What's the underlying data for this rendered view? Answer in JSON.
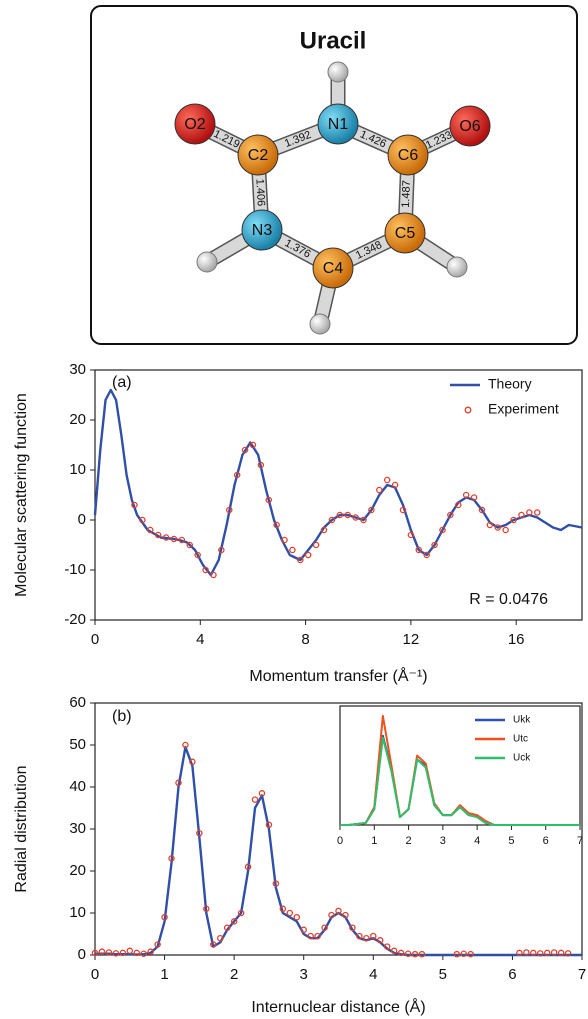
{
  "molecule": {
    "title": "Uracil",
    "atoms": [
      "O2",
      "C2",
      "N1",
      "C6",
      "O6",
      "N3",
      "C5",
      "C4"
    ],
    "bonds": [
      1.219,
      1.392,
      1.426,
      1.233,
      1.406,
      1.487,
      1.376,
      1.348
    ]
  },
  "chart_data": [
    {
      "type": "line",
      "xlabel": "Momentum transfer (Å⁻¹)",
      "ylabel": "Molecular scattering function",
      "xlim": [
        0,
        18.5
      ],
      "ylim": [
        -20,
        30
      ],
      "xticks": [
        0,
        4,
        8,
        12,
        16
      ],
      "yticks": [
        -20,
        -10,
        0,
        10,
        20,
        30
      ],
      "grid": false,
      "legend": "upper right",
      "annotations": [
        "(a)",
        "R = 0.0476"
      ],
      "series": [
        {
          "name": "Theory",
          "type": "line",
          "color": "#2f4fa8",
          "x": [
            0,
            0.2,
            0.4,
            0.6,
            0.8,
            1.0,
            1.2,
            1.4,
            1.6,
            2.0,
            2.5,
            3.0,
            3.2,
            3.5,
            3.8,
            4.1,
            4.4,
            4.7,
            5.0,
            5.3,
            5.6,
            5.9,
            6.2,
            6.5,
            6.8,
            7.1,
            7.4,
            7.8,
            8.1,
            8.4,
            8.7,
            9.0,
            9.3,
            9.6,
            9.9,
            10.2,
            10.5,
            10.8,
            11.1,
            11.4,
            11.7,
            12.0,
            12.3,
            12.6,
            12.9,
            13.2,
            13.5,
            13.8,
            14.1,
            14.4,
            14.7,
            15.0,
            15.3,
            15.6,
            15.9,
            16.2,
            16.5,
            16.8,
            17.1,
            17.4,
            17.7,
            18.0,
            18.5
          ],
          "values": [
            1,
            14,
            24,
            26,
            24,
            17,
            9,
            4,
            1,
            -2,
            -3.5,
            -3.8,
            -4,
            -4.5,
            -6,
            -9,
            -11,
            -8,
            -1,
            7,
            13,
            15.5,
            13,
            6,
            0,
            -4,
            -7,
            -8,
            -6,
            -4,
            -1.5,
            0,
            1,
            1,
            0.5,
            0,
            2,
            5,
            7,
            6.5,
            3,
            -2,
            -6,
            -7,
            -5,
            -2,
            1,
            3.5,
            4.5,
            4,
            2,
            -0.5,
            -1.5,
            -1,
            0,
            0.5,
            1,
            0.5,
            -0.5,
            -1.5,
            -2,
            -1,
            -1.5
          ]
        },
        {
          "name": "Experiment",
          "type": "scatter",
          "color": "#e0402a",
          "x": [
            1.5,
            1.8,
            2.1,
            2.4,
            2.7,
            3.0,
            3.3,
            3.6,
            3.9,
            4.2,
            4.5,
            4.8,
            5.1,
            5.4,
            5.7,
            6.0,
            6.3,
            6.6,
            6.9,
            7.2,
            7.5,
            7.8,
            8.1,
            8.4,
            8.7,
            9.0,
            9.3,
            9.6,
            9.9,
            10.2,
            10.5,
            10.8,
            11.1,
            11.4,
            11.7,
            12.0,
            12.3,
            12.6,
            12.9,
            13.2,
            13.5,
            13.8,
            14.1,
            14.4,
            14.7,
            15.0,
            15.3,
            15.6,
            15.9,
            16.2,
            16.5,
            16.8
          ],
          "values": [
            3,
            0,
            -2,
            -3,
            -3.5,
            -3.8,
            -4,
            -5,
            -7,
            -10,
            -11,
            -6,
            2,
            9,
            14,
            15,
            11,
            4,
            -1,
            -4,
            -6,
            -8,
            -7,
            -5,
            -2,
            0,
            1,
            1,
            0.5,
            0,
            2,
            6,
            8,
            7,
            2,
            -3,
            -6,
            -7,
            -5,
            -2,
            1,
            3,
            5,
            4.5,
            2,
            -1,
            -1.5,
            -2,
            0,
            1,
            1.5,
            1.5
          ]
        }
      ]
    },
    {
      "type": "line",
      "xlabel": "Internuclear distance (Å)",
      "ylabel": "Radial distribution",
      "xlim": [
        0,
        7
      ],
      "ylim": [
        0,
        60
      ],
      "xticks": [
        0,
        1,
        2,
        3,
        4,
        5,
        6,
        7
      ],
      "yticks": [
        0,
        10,
        20,
        30,
        40,
        50,
        60
      ],
      "grid": false,
      "annotations": [
        "(b)"
      ],
      "series": [
        {
          "type": "line",
          "color": "#2f4fa8",
          "x": [
            0,
            0.1,
            0.2,
            0.3,
            0.4,
            0.5,
            0.6,
            0.7,
            0.8,
            0.9,
            1.0,
            1.1,
            1.2,
            1.3,
            1.4,
            1.5,
            1.6,
            1.7,
            1.8,
            1.9,
            2.0,
            2.1,
            2.2,
            2.3,
            2.4,
            2.5,
            2.6,
            2.7,
            2.8,
            2.9,
            3.0,
            3.1,
            3.2,
            3.3,
            3.4,
            3.5,
            3.6,
            3.7,
            3.8,
            3.9,
            4.0,
            4.1,
            4.2,
            4.3,
            4.4,
            4.5,
            4.6,
            4.7,
            4.8,
            4.9,
            5.0,
            5.1,
            5.2,
            5.3,
            5.4,
            5.5,
            5.6,
            5.7,
            5.8,
            5.9,
            6.0,
            6.1,
            6.2,
            6.3,
            6.4,
            6.5,
            6.6,
            6.7,
            6.8,
            6.9,
            7.0
          ],
          "values": [
            0.3,
            0.3,
            0.3,
            0.2,
            0.2,
            0.2,
            0.1,
            0.2,
            0.5,
            2,
            8,
            22,
            40,
            49.5,
            45,
            28,
            10,
            2,
            3,
            6,
            8,
            10,
            20,
            35,
            38,
            30,
            16,
            10,
            9,
            8,
            5,
            4,
            4,
            6,
            9,
            10,
            9,
            6,
            4,
            3.5,
            4,
            3,
            1.5,
            0.5,
            0.2,
            0,
            0,
            0,
            0,
            0,
            0,
            0,
            0,
            0,
            0,
            0,
            0,
            0,
            0,
            0,
            0,
            0,
            0,
            0,
            0,
            0,
            0,
            0,
            0,
            0,
            0
          ]
        },
        {
          "type": "scatter",
          "color": "#e0402a",
          "x": [
            0,
            0.1,
            0.2,
            0.3,
            0.4,
            0.5,
            0.6,
            0.7,
            0.8,
            0.9,
            1.0,
            1.1,
            1.2,
            1.3,
            1.4,
            1.5,
            1.6,
            1.7,
            1.8,
            1.9,
            2.0,
            2.1,
            2.2,
            2.3,
            2.4,
            2.5,
            2.6,
            2.7,
            2.8,
            2.9,
            3.0,
            3.1,
            3.2,
            3.3,
            3.4,
            3.5,
            3.6,
            3.7,
            3.8,
            3.9,
            4.0,
            4.1,
            4.2,
            4.3,
            4.4,
            4.5,
            4.6,
            4.7,
            5.2,
            5.3,
            5.4,
            6.1,
            6.2,
            6.3,
            6.4,
            6.5,
            6.6,
            6.7,
            6.8
          ],
          "values": [
            0.5,
            0.8,
            0.6,
            0.4,
            0.5,
            1,
            0.5,
            0.3,
            0.8,
            2.5,
            9,
            23,
            41,
            50,
            46,
            29,
            11,
            2.5,
            4,
            6.5,
            8,
            10,
            21,
            37,
            38.5,
            31,
            17,
            11,
            10,
            9,
            6,
            4.5,
            4.5,
            6.5,
            9.5,
            10.5,
            9.5,
            6.5,
            4.5,
            4,
            4.5,
            3.5,
            2,
            1,
            0.5,
            0.3,
            0.2,
            0.2,
            0.2,
            0.3,
            0.2,
            0.5,
            0.6,
            0.5,
            0.4,
            0.5,
            0.6,
            0.5,
            0.4
          ]
        }
      ]
    },
    {
      "type": "line",
      "xlim": [
        0,
        7
      ],
      "ylim": [
        0,
        60
      ],
      "xticks": [
        0,
        1,
        2,
        3,
        4,
        5,
        6,
        7
      ],
      "grid": false,
      "legend": "upper right",
      "x": [
        0,
        0.25,
        0.5,
        0.75,
        1.0,
        1.25,
        1.5,
        1.75,
        2.0,
        2.25,
        2.5,
        2.75,
        3.0,
        3.25,
        3.5,
        3.75,
        4.0,
        4.25,
        4.5,
        4.75,
        5.0,
        5.25,
        5.5,
        5.75,
        6.0,
        6.25,
        6.5,
        6.75,
        7.0
      ],
      "series": [
        {
          "name": "Ukk",
          "type": "line",
          "color": "#2f4fa8",
          "values": [
            0,
            0,
            0.5,
            1,
            8,
            45,
            28,
            4,
            8,
            33,
            30,
            10,
            5,
            5,
            9,
            5,
            4,
            1,
            0,
            0,
            0,
            0,
            0,
            0,
            0,
            0,
            0,
            0,
            0
          ]
        },
        {
          "name": "Utc",
          "type": "line",
          "color": "#f0501e",
          "values": [
            0,
            0,
            0.5,
            1,
            9,
            55,
            30,
            4,
            8,
            35,
            31,
            11,
            5,
            5,
            10,
            6,
            5,
            2,
            0,
            0,
            0,
            0,
            0,
            0,
            0,
            0,
            0,
            0,
            0
          ]
        },
        {
          "name": "Uck",
          "type": "line",
          "color": "#2fbf6a",
          "values": [
            0,
            0,
            0.5,
            1,
            8,
            44,
            27,
            4,
            8,
            33,
            29,
            10,
            5,
            5,
            9,
            5,
            4,
            1,
            0,
            0,
            0,
            0,
            0,
            0,
            0,
            0,
            0,
            0,
            0
          ]
        }
      ]
    }
  ]
}
